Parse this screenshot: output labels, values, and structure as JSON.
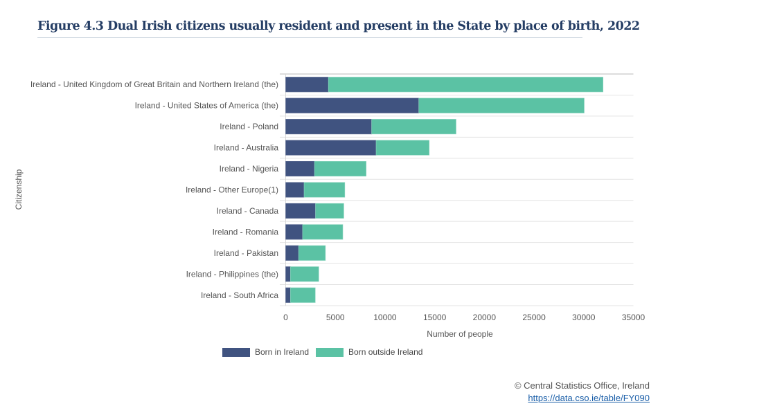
{
  "title": "Figure 4.3 Dual Irish citizens usually resident and present in the State by place of birth, 2022",
  "colors": {
    "born_in_ireland": "#405380",
    "born_outside_ireland": "#5bc2a4",
    "title": "#243d64"
  },
  "chart_data": {
    "type": "bar",
    "orientation": "horizontal",
    "stacked": true,
    "title": "Figure 4.3 Dual Irish citizens usually resident and present in the State by place of birth, 2022",
    "xlabel": "Number of people",
    "ylabel": "Citizenship",
    "xlim": [
      0,
      35000
    ],
    "xticks": [
      0,
      5000,
      10000,
      15000,
      20000,
      25000,
      30000,
      35000
    ],
    "grid": true,
    "legend_position": "bottom",
    "categories": [
      "Ireland - United Kingdom of Great Britain and Northern Ireland (the)",
      "Ireland - United States of America (the)",
      "Ireland - Poland",
      "Ireland - Australia",
      "Ireland - Nigeria",
      "Ireland - Other Europe(1)",
      "Ireland - Canada",
      "Ireland - Romania",
      "Ireland - Pakistan",
      "Ireland - Philippines (the)",
      "Ireland - South Africa"
    ],
    "series": [
      {
        "name": "Born in Ireland",
        "color": "#405380",
        "values": [
          4300,
          13400,
          8650,
          9100,
          2900,
          1850,
          3000,
          1700,
          1300,
          480,
          480
        ]
      },
      {
        "name": "Born outside Ireland",
        "color": "#5bc2a4",
        "values": [
          27650,
          16650,
          8500,
          5350,
          5200,
          4100,
          2850,
          4050,
          2700,
          2850,
          2500
        ]
      }
    ]
  },
  "legend": {
    "items": [
      {
        "label": "Born in Ireland",
        "color": "#405380"
      },
      {
        "label": "Born outside Ireland",
        "color": "#5bc2a4"
      }
    ]
  },
  "credit": {
    "text": "© Central Statistics Office, Ireland",
    "link_text": "https://data.cso.ie/table/FY090"
  }
}
